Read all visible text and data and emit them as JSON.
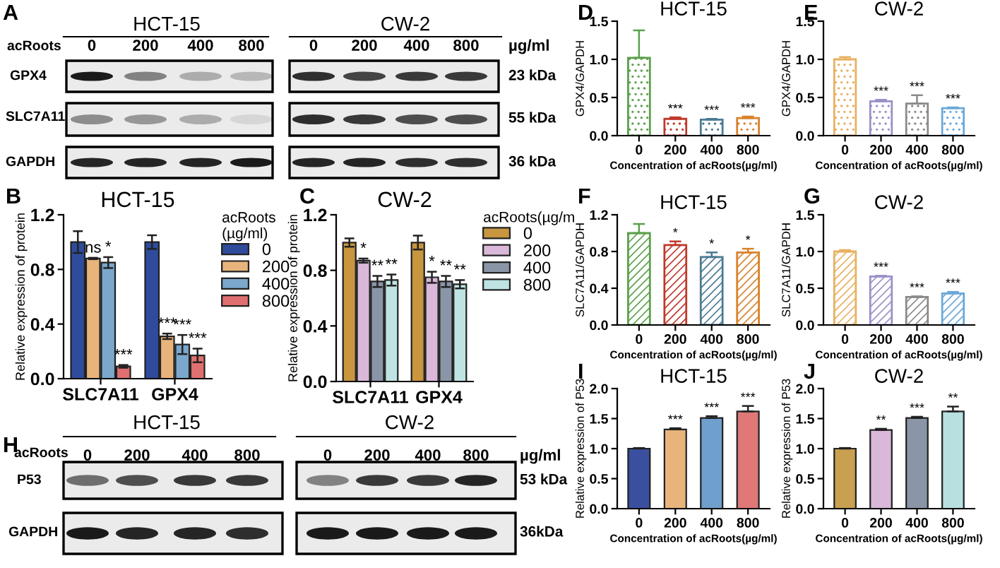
{
  "chart_data": [
    {
      "type": "other",
      "annotations": [
        "A",
        "HCT-15",
        "CW-2",
        "acRoots",
        "0",
        "200",
        "400",
        "800",
        "0",
        "200",
        "400",
        "800",
        "µg/ml",
        "GPX4",
        "SLC7A11",
        "GAPDH",
        "23 kDa",
        "55 kDa",
        "36 kDa"
      ]
    },
    {
      "type": "bar",
      "title": "HCT-15",
      "ylabel": "GPX4/GAPDH",
      "xlabel": "Concentration of acRoots(µg/ml)",
      "categories": [
        "0",
        "200",
        "400",
        "800"
      ],
      "values": [
        1.02,
        0.22,
        0.21,
        0.23
      ],
      "errors": [
        0.36,
        0.02,
        0.01,
        0.02
      ],
      "value_labels": [
        null,
        "***",
        "***",
        "***"
      ],
      "colors": [
        "#5aa04a",
        "#c0392b",
        "#4a7a94",
        "#d9822b"
      ],
      "ylim": [
        0,
        1.5
      ],
      "yticks": [
        {
          "value": 0,
          "label": "0.0"
        },
        0.5,
        {
          "value": 1,
          "label": "1.0"
        },
        1.5
      ],
      "annotations": [
        "D"
      ]
    },
    {
      "type": "bar",
      "title": "CW-2",
      "ylabel": "GPX4/GAPDH",
      "xlabel": "Concentration of acRoots(µg/ml)",
      "categories": [
        "0",
        "200",
        "400",
        "800"
      ],
      "values": [
        1.0,
        0.45,
        0.42,
        0.36
      ],
      "errors": [
        0.03,
        0.02,
        0.11,
        0.01
      ],
      "value_labels": [
        null,
        "***",
        "***",
        "***"
      ],
      "colors": [
        "#e8b060",
        "#9a90c8",
        "#8a8a8a",
        "#6aa8d8"
      ],
      "ylim": [
        0,
        1.5
      ],
      "yticks": [
        {
          "value": 0,
          "label": "0.0"
        },
        0.5,
        {
          "value": 1,
          "label": "1.0"
        },
        1.5
      ],
      "annotations": [
        "E"
      ]
    },
    {
      "type": "bar",
      "title": "HCT-15",
      "ylabel": "Relative expression of protein",
      "categories": [
        "SLC7A11",
        "GPX4"
      ],
      "legend": "top right",
      "legend_title": "acRoots\n(µg/ml)",
      "series": [
        {
          "name": "0",
          "color": "#2f4b9c",
          "values": [
            1.0,
            1.0
          ],
          "errors": [
            0.08,
            0.05
          ]
        },
        {
          "name": "200",
          "color": "#e8b47c",
          "values": [
            0.88,
            0.31
          ],
          "errors": [
            0.005,
            0.02
          ],
          "value_labels": [
            "ns",
            "***"
          ]
        },
        {
          "name": "400",
          "color": "#7ba7cc",
          "values": [
            0.85,
            0.25
          ],
          "errors": [
            0.04,
            0.07
          ],
          "value_labels": [
            "*",
            "***"
          ]
        },
        {
          "name": "800",
          "color": "#e07070",
          "values": [
            0.09,
            0.17
          ],
          "errors": [
            0.01,
            0.05
          ],
          "value_labels": [
            "***",
            "***"
          ]
        }
      ],
      "ylim": [
        0,
        1.2
      ],
      "yticks": [
        {
          "value": 0,
          "label": "0.0"
        },
        0.4,
        0.8,
        1.2
      ],
      "annotations": [
        "B"
      ]
    },
    {
      "type": "bar",
      "title": "CW-2",
      "ylabel": "Relative expression of protein",
      "categories": [
        "SLC7A11",
        "GPX4"
      ],
      "legend": "top right",
      "legend_title": "acRoots(µg/m",
      "series": [
        {
          "name": "0",
          "color": "#c8963e",
          "values": [
            1.0,
            1.0
          ],
          "errors": [
            0.03,
            0.05
          ]
        },
        {
          "name": "200",
          "color": "#d9b8d9",
          "values": [
            0.87,
            0.75
          ],
          "errors": [
            0.015,
            0.04
          ],
          "value_labels": [
            "*",
            "*"
          ]
        },
        {
          "name": "400",
          "color": "#8a96a8",
          "values": [
            0.72,
            0.72
          ],
          "errors": [
            0.04,
            0.04
          ],
          "value_labels": [
            "**",
            "**"
          ]
        },
        {
          "name": "800",
          "color": "#bfe3e3",
          "values": [
            0.73,
            0.7
          ],
          "errors": [
            0.04,
            0.03
          ],
          "value_labels": [
            "**",
            "**"
          ]
        }
      ],
      "ylim": [
        0,
        1.2
      ],
      "yticks": [
        {
          "value": 0,
          "label": "0.0"
        },
        0.4,
        0.8,
        1.2
      ],
      "annotations": [
        "C"
      ]
    },
    {
      "type": "bar",
      "title": "HCT-15",
      "ylabel": "SLC7A11/GAPDH",
      "xlabel": "Concentration of acRoots(µg/ml)",
      "categories": [
        "0",
        "200",
        "400",
        "800"
      ],
      "values": [
        1.0,
        0.87,
        0.74,
        0.79
      ],
      "errors": [
        0.1,
        0.04,
        0.05,
        0.04
      ],
      "value_labels": [
        null,
        "*",
        "*",
        "*"
      ],
      "colors": [
        "#5aa04a",
        "#c0392b",
        "#4a7a94",
        "#d9822b"
      ],
      "ylim": [
        0,
        1.2
      ],
      "yticks": [
        {
          "value": 0,
          "label": "0.0"
        },
        0.4,
        0.8,
        1.2
      ],
      "annotations": [
        "F"
      ]
    },
    {
      "type": "bar",
      "title": "CW-2",
      "ylabel": "SLC7A11/GAPDH",
      "xlabel": "Concentration of acRoots(µg/ml)",
      "categories": [
        "0",
        "200",
        "400",
        "800"
      ],
      "values": [
        1.0,
        0.66,
        0.38,
        0.43
      ],
      "errors": [
        0.02,
        0.01,
        0.01,
        0.02
      ],
      "value_labels": [
        null,
        "***",
        "***",
        "***"
      ],
      "colors": [
        "#e8b060",
        "#9a90c8",
        "#8a8a8a",
        "#6aa8d8"
      ],
      "ylim": [
        0,
        1.5
      ],
      "yticks": [
        {
          "value": 0,
          "label": "0.0"
        },
        0.5,
        {
          "value": 1,
          "label": "1.0"
        },
        1.5
      ],
      "annotations": [
        "G"
      ]
    },
    {
      "type": "other",
      "annotations": [
        "H",
        "HCT-15",
        "CW-2",
        "acRoots",
        "0",
        "200",
        "400",
        "800",
        "0",
        "200",
        "400",
        "800",
        "µg/ml",
        "P53",
        "GAPDH",
        "53 kDa",
        "36kDa"
      ]
    },
    {
      "type": "bar",
      "title": "HCT-15",
      "ylabel": "Relative expression of P53",
      "xlabel": "Concentration of acRoots(µg/ml)",
      "categories": [
        "0",
        "200",
        "400",
        "800"
      ],
      "values": [
        1.0,
        1.32,
        1.51,
        1.62
      ],
      "errors": [
        0.01,
        0.02,
        0.03,
        0.09
      ],
      "value_labels": [
        null,
        "***",
        "***",
        "***"
      ],
      "colors": [
        "#3a4fa0",
        "#e8b47c",
        "#6f9fcc",
        "#e07878"
      ],
      "ylim": [
        0,
        2
      ],
      "yticks": [
        {
          "value": 0,
          "label": "0.0"
        },
        0.5,
        {
          "value": 1,
          "label": "1.0"
        },
        1.5,
        {
          "value": 2,
          "label": "2.0"
        }
      ],
      "annotations": [
        "I"
      ]
    },
    {
      "type": "bar",
      "title": "CW-2",
      "ylabel": "Relative expression of P53",
      "xlabel": "Concentration of acRoots(µg/ml)",
      "categories": [
        "0",
        "200",
        "400",
        "800"
      ],
      "values": [
        1.0,
        1.31,
        1.51,
        1.62
      ],
      "errors": [
        0.01,
        0.02,
        0.02,
        0.08
      ],
      "value_labels": [
        null,
        "**",
        "***",
        "**"
      ],
      "colors": [
        "#c8a050",
        "#d9b8d9",
        "#8a96a8",
        "#b8e0e0"
      ],
      "ylim": [
        0,
        2
      ],
      "yticks": [
        {
          "value": 0,
          "label": "0.0"
        },
        0.5,
        {
          "value": 1,
          "label": "1.0"
        },
        1.5,
        {
          "value": 2,
          "label": "2.0"
        }
      ],
      "annotations": [
        "J"
      ]
    }
  ]
}
